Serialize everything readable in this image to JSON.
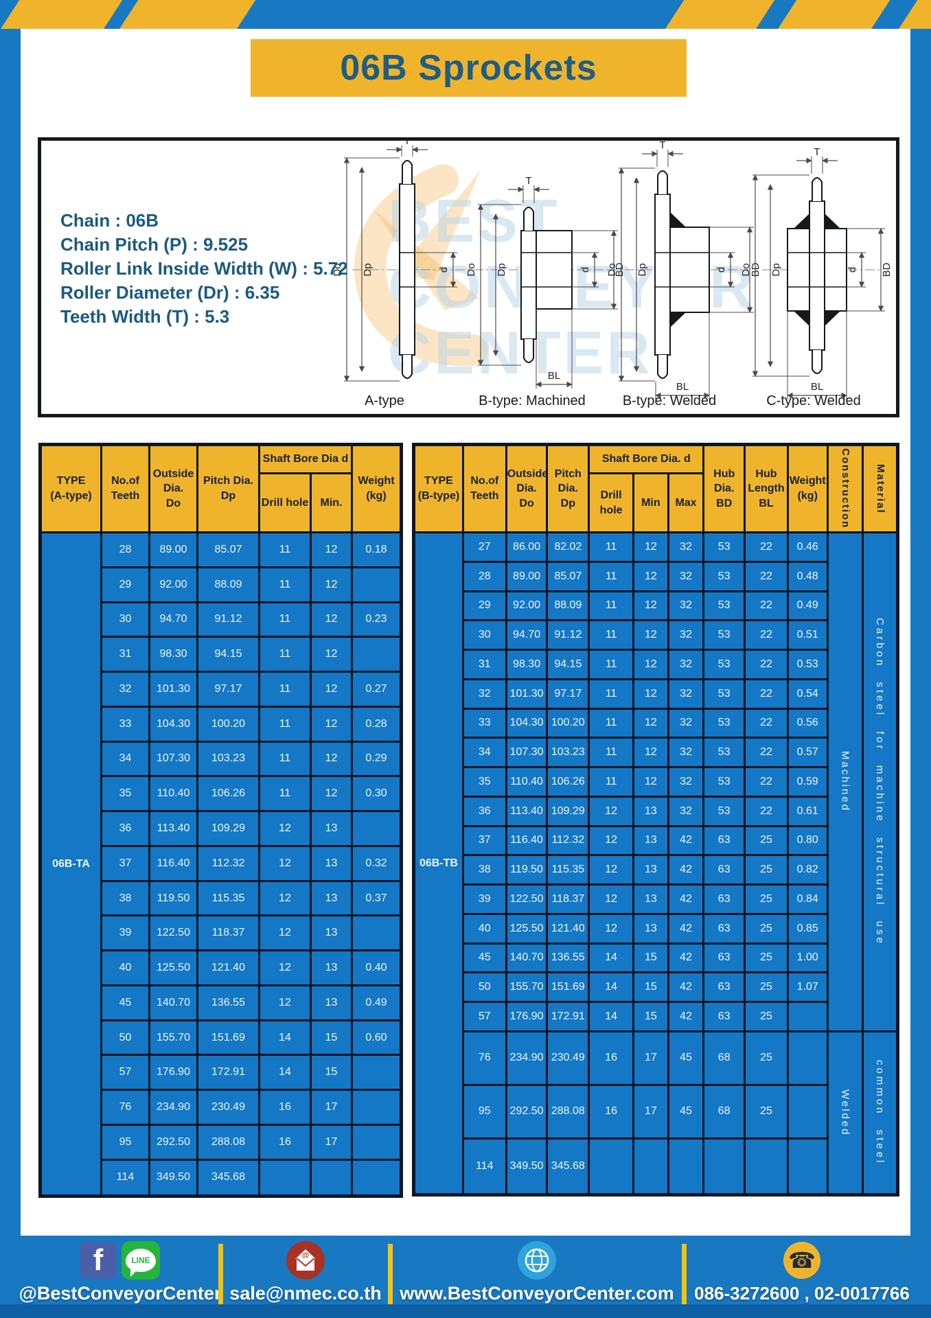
{
  "page": {
    "title": "06B Sprockets"
  },
  "colors": {
    "accent_yellow": "#F0B42C",
    "panel_blue": "#1478C6",
    "frame_blue": "#1878C2",
    "title_text": "#1E5D84",
    "footer_divider": "#F2C40E"
  },
  "specs": [
    "Chain  : 06B",
    "Chain Pitch (P)  :  9.525",
    "Roller Link Inside Width (W)  :  5.72",
    "Roller Diameter (Dr)  : 6.35",
    "Teeth Width (T)  :  5.3"
  ],
  "diagram": {
    "watermark_lines": [
      "BEST",
      "CONVEYOR",
      "CENTER"
    ],
    "captions": [
      "A-type",
      "B-type: Machined",
      "B-type: Welded",
      "C-type: Welded"
    ],
    "dims": {
      "t": "T",
      "do": "Do",
      "dp": "Dp",
      "d": "d",
      "bd": "BD",
      "bl": "BL"
    }
  },
  "table_a": {
    "type_label": "06B-TA",
    "headers": {
      "type": "TYPE\n(A-type)",
      "teeth": "No.of\nTeeth",
      "outside": "Outside\nDia.\nDo",
      "pitch": "Pitch Dia.\nDp",
      "shaft_bore": "Shaft Bore Dia d",
      "drill": "Drill hole",
      "min": "Min.",
      "weight": "Weight\n(kg)"
    },
    "rows": [
      [
        "28",
        "89.00",
        "85.07",
        "11",
        "12",
        "0.18"
      ],
      [
        "29",
        "92.00",
        "88.09",
        "11",
        "12",
        ""
      ],
      [
        "30",
        "94.70",
        "91.12",
        "11",
        "12",
        "0.23"
      ],
      [
        "31",
        "98.30",
        "94.15",
        "11",
        "12",
        ""
      ],
      [
        "32",
        "101.30",
        "97.17",
        "11",
        "12",
        "0.27"
      ],
      [
        "33",
        "104.30",
        "100.20",
        "11",
        "12",
        "0.28"
      ],
      [
        "34",
        "107.30",
        "103.23",
        "11",
        "12",
        "0.29"
      ],
      [
        "35",
        "110.40",
        "106.26",
        "11",
        "12",
        "0.30"
      ],
      [
        "36",
        "113.40",
        "109.29",
        "12",
        "13",
        ""
      ],
      [
        "37",
        "116.40",
        "112.32",
        "12",
        "13",
        "0.32"
      ],
      [
        "38",
        "119.50",
        "115.35",
        "12",
        "13",
        "0.37"
      ],
      [
        "39",
        "122.50",
        "118.37",
        "12",
        "13",
        ""
      ],
      [
        "40",
        "125.50",
        "121.40",
        "12",
        "13",
        "0.40"
      ],
      [
        "45",
        "140.70",
        "136.55",
        "12",
        "13",
        "0.49"
      ],
      [
        "50",
        "155.70",
        "151.69",
        "14",
        "15",
        "0.60"
      ],
      [
        "57",
        "176.90",
        "172.91",
        "14",
        "15",
        ""
      ],
      [
        "76",
        "234.90",
        "230.49",
        "16",
        "17",
        ""
      ],
      [
        "95",
        "292.50",
        "288.08",
        "16",
        "17",
        ""
      ],
      [
        "114",
        "349.50",
        "345.68",
        "",
        "",
        ""
      ]
    ]
  },
  "table_b": {
    "type_label": "06B-TB",
    "headers": {
      "type": "TYPE\n(B-type)",
      "teeth": "No.of\nTeeth",
      "outside": "Outside\nDia.\nDo",
      "pitch": "Pitch\nDia.\nDp",
      "shaft_bore": "Shaft Bore Dia. d",
      "drill": "Drill hole",
      "min": "Min",
      "max": "Max",
      "hub_dia": "Hub\nDia.\nBD",
      "hub_len": "Hub\nLength\nBL",
      "weight": "Weight\n(kg)",
      "construction": "Construction",
      "material": "Material"
    },
    "rows": [
      [
        "27",
        "86.00",
        "82.02",
        "11",
        "12",
        "32",
        "53",
        "22",
        "0.46"
      ],
      [
        "28",
        "89.00",
        "85.07",
        "11",
        "12",
        "32",
        "53",
        "22",
        "0.48"
      ],
      [
        "29",
        "92.00",
        "88.09",
        "11",
        "12",
        "32",
        "53",
        "22",
        "0.49"
      ],
      [
        "30",
        "94.70",
        "91.12",
        "11",
        "12",
        "32",
        "53",
        "22",
        "0.51"
      ],
      [
        "31",
        "98.30",
        "94.15",
        "11",
        "12",
        "32",
        "53",
        "22",
        "0.53"
      ],
      [
        "32",
        "101.30",
        "97.17",
        "11",
        "12",
        "32",
        "53",
        "22",
        "0.54"
      ],
      [
        "33",
        "104.30",
        "100.20",
        "11",
        "12",
        "32",
        "53",
        "22",
        "0.56"
      ],
      [
        "34",
        "107.30",
        "103.23",
        "11",
        "12",
        "32",
        "53",
        "22",
        "0.57"
      ],
      [
        "35",
        "110.40",
        "106.26",
        "11",
        "12",
        "32",
        "53",
        "22",
        "0.59"
      ],
      [
        "36",
        "113.40",
        "109.29",
        "12",
        "13",
        "32",
        "53",
        "22",
        "0.61"
      ],
      [
        "37",
        "116.40",
        "112.32",
        "12",
        "13",
        "42",
        "63",
        "25",
        "0.80"
      ],
      [
        "38",
        "119.50",
        "115.35",
        "12",
        "13",
        "42",
        "63",
        "25",
        "0.82"
      ],
      [
        "39",
        "122.50",
        "118.37",
        "12",
        "13",
        "42",
        "63",
        "25",
        "0.84"
      ],
      [
        "40",
        "125.50",
        "121.40",
        "12",
        "13",
        "42",
        "63",
        "25",
        "0.85"
      ],
      [
        "45",
        "140.70",
        "136.55",
        "14",
        "15",
        "42",
        "63",
        "25",
        "1.00"
      ],
      [
        "50",
        "155.70",
        "151.69",
        "14",
        "15",
        "42",
        "63",
        "25",
        "1.07"
      ],
      [
        "57",
        "176.90",
        "172.91",
        "14",
        "15",
        "42",
        "63",
        "25",
        ""
      ],
      [
        "76",
        "234.90",
        "230.49",
        "16",
        "17",
        "45",
        "68",
        "25",
        ""
      ],
      [
        "95",
        "292.50",
        "288.08",
        "16",
        "17",
        "45",
        "68",
        "25",
        ""
      ],
      [
        "114",
        "349.50",
        "345.68",
        "",
        "",
        "",
        "",
        "",
        ""
      ]
    ],
    "groups": [
      {
        "construction": "Machined",
        "material": "Carbon steel for machine structural use",
        "rows": 17
      },
      {
        "construction": "Welded",
        "material": "common steel",
        "rows": 3
      }
    ]
  },
  "footer": {
    "facebook_letter": "f",
    "line_label": "LINE",
    "social": "@BestConveyorCenter",
    "email": "sale@nmec.co.th",
    "website": "www.BestConveyorCenter.com",
    "phones": "086-3272600 , 02-0017766"
  }
}
